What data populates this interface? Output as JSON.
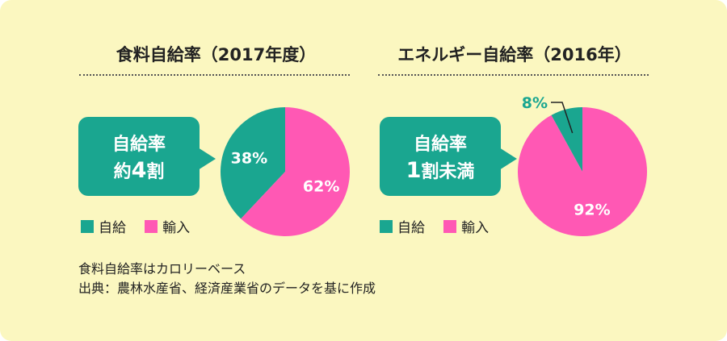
{
  "colors": {
    "self": "#1aa690",
    "import": "#ff58b4",
    "background": "#fbf7c0"
  },
  "legend": {
    "self_label": "自給",
    "import_label": "輸入"
  },
  "chart_data": [
    {
      "type": "pie",
      "title": "食料自給率（2017年度）",
      "categories": [
        "自給",
        "輸入"
      ],
      "values": [
        38,
        62
      ],
      "labels": [
        "38%",
        "62%"
      ],
      "callout": {
        "line1": "自給率",
        "line2_pre": "約",
        "line2_num": "4",
        "line2_post": "割"
      }
    },
    {
      "type": "pie",
      "title": "エネルギー自給率（2016年）",
      "categories": [
        "自給",
        "輸入"
      ],
      "values": [
        8,
        92
      ],
      "labels": [
        "8%",
        "92%"
      ],
      "callout": {
        "line1": "自給率",
        "line2_pre": "",
        "line2_num": "1",
        "line2_post": "割未満"
      }
    }
  ],
  "notes": {
    "line1": "食料自給率はカロリーベース",
    "line2": "出典：農林水産省、経済産業省のデータを基に作成"
  }
}
